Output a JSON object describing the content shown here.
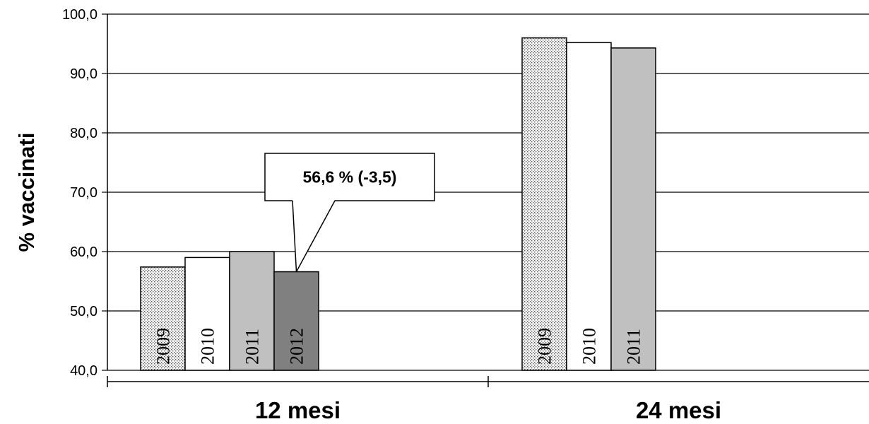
{
  "chart_data": {
    "type": "bar",
    "categories": [
      "12 mesi",
      "24 mesi"
    ],
    "series": [
      {
        "name": "2009",
        "values": [
          57.4,
          96.0
        ],
        "label_on_bar": "2009",
        "pattern": "dotted",
        "color": "#d9d9d9"
      },
      {
        "name": "2010",
        "values": [
          59.0,
          95.2
        ],
        "label_on_bar": "2010",
        "pattern": "solid",
        "color": "#ffffff"
      },
      {
        "name": "2011",
        "values": [
          60.0,
          94.3
        ],
        "label_on_bar": "2011",
        "pattern": "solid",
        "color": "#c0c0c0"
      },
      {
        "name": "2012",
        "values": [
          56.6,
          null
        ],
        "label_on_bar": "2012",
        "pattern": "solid",
        "color": "#808080"
      }
    ],
    "ylabel": "% vaccinati",
    "xlabel": "",
    "ylim": [
      40,
      100
    ],
    "yticks": [
      "40,0",
      "50,0",
      "60,0",
      "70,0",
      "80,0",
      "90,0",
      "100,0"
    ],
    "grid": true,
    "legend": "none",
    "annotation": {
      "text": "56,6 % (-3,5)",
      "category": "12 mesi",
      "series": "2012"
    }
  }
}
